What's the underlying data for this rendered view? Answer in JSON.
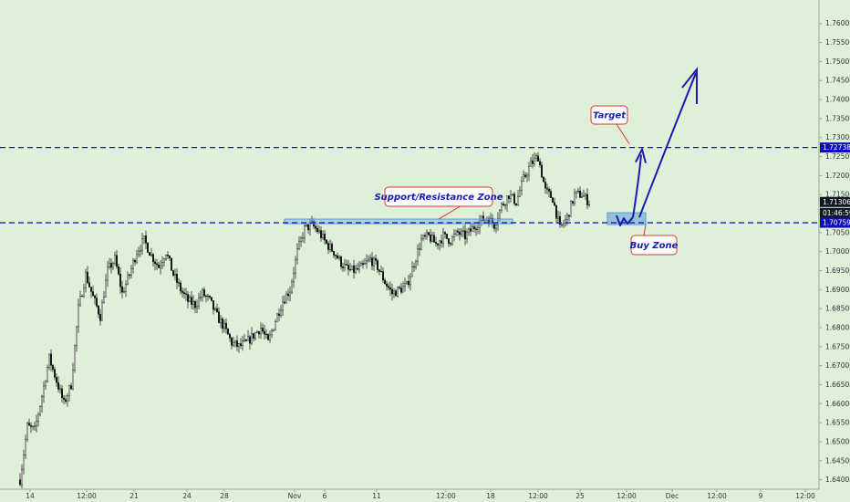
{
  "chart_data": {
    "type": "candlestick",
    "title": "",
    "xlabel": "",
    "ylabel": "",
    "ylim": [
      1.6375,
      1.7645
    ],
    "grid": false,
    "y_ticks": [
      "1.76000",
      "1.75500",
      "1.75000",
      "1.74500",
      "1.74000",
      "1.73500",
      "1.73000",
      "1.72500",
      "1.72000",
      "1.71500",
      "1.71000",
      "1.70500",
      "1.70000",
      "1.69500",
      "1.69000",
      "1.68500",
      "1.68000",
      "1.67500",
      "1.67000",
      "1.66500",
      "1.66000",
      "1.65500",
      "1.65000",
      "1.64500",
      "1.64000"
    ],
    "x_ticks": [
      "14",
      "12:00",
      "21",
      "24",
      "28",
      "Nov",
      "6",
      "11",
      "12:00",
      "18",
      "12:00",
      "25",
      "12:00",
      "Dec",
      "12:00",
      "9",
      "12:00"
    ],
    "price_path": [
      [
        0,
        1.64
      ],
      [
        4,
        1.654
      ],
      [
        8,
        1.653
      ],
      [
        12,
        1.662
      ],
      [
        16,
        1.672
      ],
      [
        20,
        1.666
      ],
      [
        24,
        1.66
      ],
      [
        28,
        1.665
      ],
      [
        32,
        1.685
      ],
      [
        36,
        1.694
      ],
      [
        40,
        1.688
      ],
      [
        44,
        1.683
      ],
      [
        48,
        1.695
      ],
      [
        52,
        1.698
      ],
      [
        56,
        1.689
      ],
      [
        60,
        1.694
      ],
      [
        64,
        1.7
      ],
      [
        68,
        1.703
      ],
      [
        72,
        1.699
      ],
      [
        76,
        1.696
      ],
      [
        80,
        1.7
      ],
      [
        84,
        1.694
      ],
      [
        88,
        1.69
      ],
      [
        92,
        1.687
      ],
      [
        96,
        1.686
      ],
      [
        100,
        1.689
      ],
      [
        104,
        1.687
      ],
      [
        108,
        1.683
      ],
      [
        112,
        1.68
      ],
      [
        116,
        1.676
      ],
      [
        120,
        1.675
      ],
      [
        124,
        1.676
      ],
      [
        128,
        1.678
      ],
      [
        132,
        1.68
      ],
      [
        136,
        1.676
      ],
      [
        140,
        1.682
      ],
      [
        144,
        1.687
      ],
      [
        148,
        1.69
      ],
      [
        152,
        1.7
      ],
      [
        156,
        1.706
      ],
      [
        160,
        1.707
      ],
      [
        164,
        1.705
      ],
      [
        168,
        1.702
      ],
      [
        172,
        1.7
      ],
      [
        176,
        1.697
      ],
      [
        180,
        1.695
      ],
      [
        184,
        1.695
      ],
      [
        188,
        1.696
      ],
      [
        192,
        1.698
      ],
      [
        196,
        1.696
      ],
      [
        200,
        1.692
      ],
      [
        204,
        1.689
      ],
      [
        208,
        1.69
      ],
      [
        212,
        1.691
      ],
      [
        216,
        1.697
      ],
      [
        220,
        1.703
      ],
      [
        224,
        1.704
      ],
      [
        228,
        1.702
      ],
      [
        232,
        1.704
      ],
      [
        236,
        1.703
      ],
      [
        240,
        1.705
      ],
      [
        244,
        1.704
      ],
      [
        248,
        1.706
      ],
      [
        252,
        1.708
      ],
      [
        256,
        1.709
      ],
      [
        260,
        1.707
      ],
      [
        264,
        1.712
      ],
      [
        268,
        1.715
      ],
      [
        272,
        1.713
      ],
      [
        276,
        1.719
      ],
      [
        280,
        1.723
      ],
      [
        284,
        1.725
      ],
      [
        288,
        1.716
      ],
      [
        292,
        1.714
      ],
      [
        296,
        1.706
      ],
      [
        300,
        1.709
      ],
      [
        304,
        1.715
      ],
      [
        308,
        1.715
      ],
      [
        312,
        1.713
      ]
    ]
  },
  "price_scale": {
    "target_badge": "1.72738",
    "current_price_badge": "1.71306",
    "countdown_badge": "01:46:59",
    "support_badge": "1.70759"
  },
  "annotations": {
    "target_label": "Target",
    "support_resistance_label": "Support/Resistance Zone",
    "buy_zone_label": "Buy Zone"
  },
  "levels": {
    "target_level": 1.72738,
    "support_level": 1.70759
  },
  "colors": {
    "background": "#dff0d8",
    "level_line": "#1a1acc",
    "zone_fill": "#5b9bd5",
    "forecast_arrow": "#1a1ab0",
    "callout_border": "#e03030",
    "current_badge": "#131722",
    "level_badge": "#0d0dbf"
  }
}
